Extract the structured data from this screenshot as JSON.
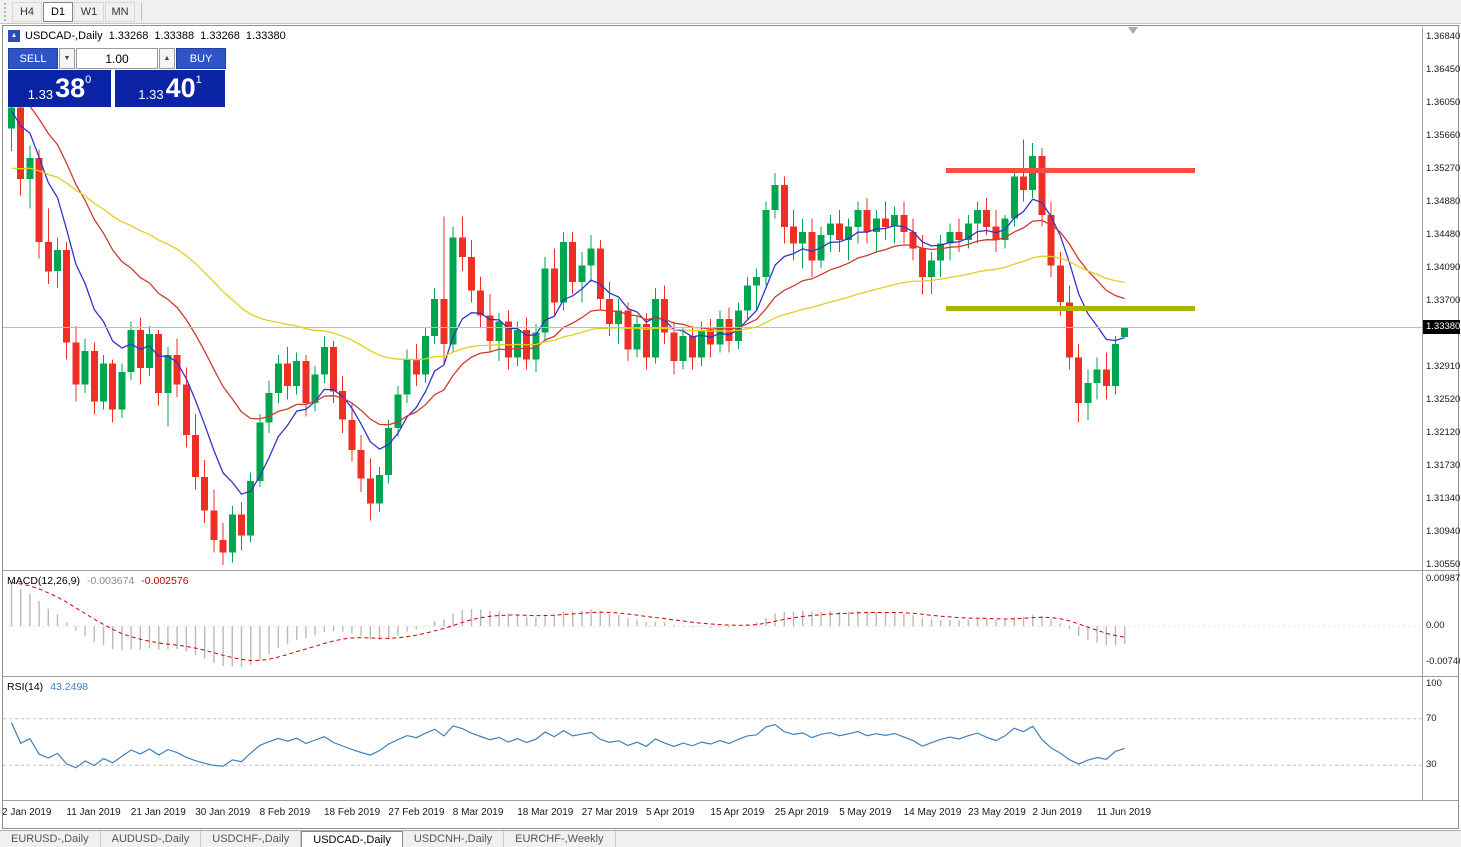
{
  "toolbar": {
    "timeframes": [
      {
        "label": "H4",
        "active": false
      },
      {
        "label": "D1",
        "active": true
      },
      {
        "label": "W1",
        "active": false
      },
      {
        "label": "MN",
        "active": false
      }
    ]
  },
  "icons": {
    "one_click_toggle": "▲",
    "volume_down": "▼",
    "volume_up": "▲"
  },
  "symbol_header": {
    "title": "USDCAD-,Daily",
    "open": "1.33268",
    "high": "1.33388",
    "low": "1.33268",
    "close": "1.33380"
  },
  "trade_panel": {
    "sell_label": "SELL",
    "buy_label": "BUY",
    "volume": "1.00",
    "sell_price": {
      "base": "1.33",
      "big": "38",
      "sup": "0"
    },
    "buy_price": {
      "base": "1.33",
      "big": "40",
      "sup": "1"
    }
  },
  "colors": {
    "button_blue": "#2e55c8",
    "price_panel_blue": "#0b24a6",
    "tag_black": "#000000"
  },
  "price_axis": {
    "labels": [
      "1.36840",
      "1.36450",
      "1.36050",
      "1.35660",
      "1.35270",
      "1.34880",
      "1.34480",
      "1.34090",
      "1.33700",
      "1.32910",
      "1.32520",
      "1.32120",
      "1.31730",
      "1.31340",
      "1.30940",
      "1.30550"
    ],
    "current": {
      "text": "1.33380",
      "value": 1.3338
    }
  },
  "macd_panel": {
    "label": "MACD(12,26,9)",
    "value1": "-0.003674",
    "value2": "-0.002576",
    "axis": [
      {
        "text": "0.009874",
        "value": 0.009874
      },
      {
        "text": "0.00",
        "value": 0
      },
      {
        "text": "-0.007461",
        "value": -0.007461
      }
    ]
  },
  "rsi_panel": {
    "label": "RSI(14)",
    "value": "43.2498",
    "axis": [
      {
        "text": "100",
        "value": 100
      },
      {
        "text": "70",
        "value": 70
      },
      {
        "text": "30",
        "value": 30
      }
    ],
    "levels": [
      70,
      30
    ]
  },
  "bottom_tabs": [
    {
      "label": "EURUSD-,Daily",
      "active": false
    },
    {
      "label": "AUDUSD-,Daily",
      "active": false
    },
    {
      "label": "USDCHF-,Daily",
      "active": false
    },
    {
      "label": "USDCAD-,Daily",
      "active": true
    },
    {
      "label": "USDCNH-,Daily",
      "active": false
    },
    {
      "label": "EURCHF-,Weekly",
      "active": false
    }
  ],
  "chart_data": {
    "type": "candlestick",
    "title": "USDCAD-,Daily",
    "symbol": "USDCAD-",
    "timeframe": "Daily",
    "ylim": [
      1.3049,
      1.3696
    ],
    "up_color": "#00a64f",
    "down_color": "#ef2e24",
    "x_tick_labels": [
      "2 Jan 2019",
      "11 Jan 2019",
      "21 Jan 2019",
      "30 Jan 2019",
      "8 Feb 2019",
      "18 Feb 2019",
      "27 Feb 2019",
      "8 Mar 2019",
      "18 Mar 2019",
      "27 Mar 2019",
      "5 Apr 2019",
      "15 Apr 2019",
      "25 Apr 2019",
      "5 May 2019",
      "14 May 2019",
      "23 May 2019",
      "2 Jun 2019",
      "11 Jun 2019"
    ],
    "x_tick_indices": [
      0,
      7,
      14,
      21,
      28,
      35,
      42,
      49,
      56,
      63,
      70,
      77,
      84,
      91,
      98,
      105,
      112,
      119
    ],
    "candles": [
      [
        1.3575,
        1.3608,
        1.3548,
        1.36
      ],
      [
        1.36,
        1.3618,
        1.3495,
        1.3515
      ],
      [
        1.3515,
        1.3555,
        1.348,
        1.354
      ],
      [
        1.354,
        1.355,
        1.342,
        1.344
      ],
      [
        1.344,
        1.348,
        1.339,
        1.3405
      ],
      [
        1.3405,
        1.3445,
        1.3385,
        1.343
      ],
      [
        1.343,
        1.344,
        1.33,
        1.332
      ],
      [
        1.332,
        1.334,
        1.325,
        1.327
      ],
      [
        1.327,
        1.3325,
        1.326,
        1.331
      ],
      [
        1.331,
        1.332,
        1.3235,
        1.325
      ],
      [
        1.325,
        1.3305,
        1.324,
        1.3295
      ],
      [
        1.3295,
        1.33,
        1.3225,
        1.324
      ],
      [
        1.324,
        1.3295,
        1.323,
        1.3285
      ],
      [
        1.3285,
        1.3345,
        1.3275,
        1.3335
      ],
      [
        1.3335,
        1.335,
        1.327,
        1.329
      ],
      [
        1.329,
        1.334,
        1.328,
        1.333
      ],
      [
        1.333,
        1.3335,
        1.3245,
        1.326
      ],
      [
        1.326,
        1.3315,
        1.322,
        1.3305
      ],
      [
        1.3305,
        1.3325,
        1.3255,
        1.327
      ],
      [
        1.327,
        1.329,
        1.3195,
        1.321
      ],
      [
        1.321,
        1.3235,
        1.3145,
        1.316
      ],
      [
        1.316,
        1.318,
        1.3105,
        1.312
      ],
      [
        1.312,
        1.3145,
        1.307,
        1.3085
      ],
      [
        1.3085,
        1.3105,
        1.3055,
        1.307
      ],
      [
        1.307,
        1.3125,
        1.3058,
        1.3115
      ],
      [
        1.3115,
        1.313,
        1.3072,
        1.309
      ],
      [
        1.309,
        1.3165,
        1.3082,
        1.3155
      ],
      [
        1.3155,
        1.3235,
        1.3148,
        1.3225
      ],
      [
        1.3225,
        1.3275,
        1.3212,
        1.326
      ],
      [
        1.326,
        1.3305,
        1.3248,
        1.3295
      ],
      [
        1.3295,
        1.3315,
        1.3252,
        1.3268
      ],
      [
        1.3268,
        1.3308,
        1.3258,
        1.3298
      ],
      [
        1.3298,
        1.3305,
        1.3232,
        1.3248
      ],
      [
        1.3248,
        1.3292,
        1.3238,
        1.3282
      ],
      [
        1.3282,
        1.3328,
        1.3272,
        1.3315
      ],
      [
        1.3315,
        1.3322,
        1.3248,
        1.3262
      ],
      [
        1.3262,
        1.328,
        1.3212,
        1.3228
      ],
      [
        1.3228,
        1.3248,
        1.3178,
        1.3192
      ],
      [
        1.3192,
        1.321,
        1.3142,
        1.3158
      ],
      [
        1.3158,
        1.3182,
        1.3108,
        1.3128
      ],
      [
        1.3128,
        1.3172,
        1.3118,
        1.3162
      ],
      [
        1.3162,
        1.3228,
        1.3152,
        1.3218
      ],
      [
        1.3218,
        1.3268,
        1.3208,
        1.3258
      ],
      [
        1.3258,
        1.3312,
        1.3248,
        1.33
      ],
      [
        1.33,
        1.3318,
        1.3268,
        1.3282
      ],
      [
        1.3282,
        1.3338,
        1.3272,
        1.3328
      ],
      [
        1.3328,
        1.3385,
        1.3318,
        1.3372
      ],
      [
        1.3372,
        1.347,
        1.3295,
        1.3318
      ],
      [
        1.3318,
        1.3458,
        1.3308,
        1.3445
      ],
      [
        1.3445,
        1.347,
        1.3405,
        1.3422
      ],
      [
        1.3422,
        1.3442,
        1.3368,
        1.3382
      ],
      [
        1.3382,
        1.3398,
        1.3338,
        1.3352
      ],
      [
        1.3352,
        1.3378,
        1.3308,
        1.3322
      ],
      [
        1.3322,
        1.3355,
        1.3298,
        1.3345
      ],
      [
        1.3345,
        1.3358,
        1.3288,
        1.3302
      ],
      [
        1.3302,
        1.3345,
        1.3292,
        1.3335
      ],
      [
        1.3335,
        1.335,
        1.3288,
        1.33
      ],
      [
        1.33,
        1.3342,
        1.3285,
        1.3332
      ],
      [
        1.3332,
        1.3422,
        1.3322,
        1.3408
      ],
      [
        1.3408,
        1.3432,
        1.3352,
        1.3368
      ],
      [
        1.3368,
        1.3452,
        1.3358,
        1.344
      ],
      [
        1.344,
        1.3452,
        1.3378,
        1.3392
      ],
      [
        1.3392,
        1.3428,
        1.3368,
        1.3412
      ],
      [
        1.3412,
        1.3448,
        1.3392,
        1.3432
      ],
      [
        1.3432,
        1.3442,
        1.3358,
        1.3372
      ],
      [
        1.3372,
        1.3392,
        1.3328,
        1.3342
      ],
      [
        1.3342,
        1.3372,
        1.3318,
        1.3358
      ],
      [
        1.3358,
        1.3368,
        1.3298,
        1.3312
      ],
      [
        1.3312,
        1.3352,
        1.3302,
        1.3342
      ],
      [
        1.3342,
        1.3355,
        1.3288,
        1.3302
      ],
      [
        1.3302,
        1.3385,
        1.3295,
        1.3372
      ],
      [
        1.3372,
        1.3388,
        1.3318,
        1.3332
      ],
      [
        1.3332,
        1.3345,
        1.3282,
        1.3298
      ],
      [
        1.3298,
        1.3338,
        1.3288,
        1.3328
      ],
      [
        1.3328,
        1.334,
        1.3288,
        1.3302
      ],
      [
        1.3302,
        1.3345,
        1.3292,
        1.3335
      ],
      [
        1.3335,
        1.3348,
        1.3302,
        1.3318
      ],
      [
        1.3318,
        1.3358,
        1.3308,
        1.3348
      ],
      [
        1.3348,
        1.3362,
        1.3308,
        1.3322
      ],
      [
        1.3322,
        1.3368,
        1.3312,
        1.3358
      ],
      [
        1.3358,
        1.3398,
        1.3348,
        1.3388
      ],
      [
        1.3388,
        1.3408,
        1.3358,
        1.3398
      ],
      [
        1.3398,
        1.3488,
        1.3388,
        1.3478
      ],
      [
        1.3478,
        1.3522,
        1.3468,
        1.3508
      ],
      [
        1.3508,
        1.3518,
        1.3438,
        1.3458
      ],
      [
        1.3458,
        1.3478,
        1.3418,
        1.3438
      ],
      [
        1.3438,
        1.3468,
        1.3408,
        1.3452
      ],
      [
        1.3452,
        1.3468,
        1.3398,
        1.3418
      ],
      [
        1.3418,
        1.3458,
        1.3408,
        1.3448
      ],
      [
        1.3448,
        1.3472,
        1.3428,
        1.3462
      ],
      [
        1.3462,
        1.3478,
        1.3428,
        1.3442
      ],
      [
        1.3442,
        1.3468,
        1.3418,
        1.3458
      ],
      [
        1.3458,
        1.3488,
        1.3438,
        1.3478
      ],
      [
        1.3478,
        1.3492,
        1.3438,
        1.3452
      ],
      [
        1.3452,
        1.3478,
        1.3428,
        1.3468
      ],
      [
        1.3468,
        1.3488,
        1.3442,
        1.3458
      ],
      [
        1.3458,
        1.3482,
        1.3438,
        1.3472
      ],
      [
        1.3472,
        1.3488,
        1.3438,
        1.3452
      ],
      [
        1.3452,
        1.3468,
        1.3418,
        1.3432
      ],
      [
        1.3432,
        1.3448,
        1.3377,
        1.3398
      ],
      [
        1.3398,
        1.3428,
        1.3378,
        1.3418
      ],
      [
        1.3418,
        1.3448,
        1.3398,
        1.3438
      ],
      [
        1.3438,
        1.3462,
        1.3418,
        1.3452
      ],
      [
        1.3452,
        1.3468,
        1.3428,
        1.3442
      ],
      [
        1.3442,
        1.3472,
        1.3432,
        1.3462
      ],
      [
        1.3462,
        1.3488,
        1.3438,
        1.3478
      ],
      [
        1.3478,
        1.3492,
        1.3448,
        1.3458
      ],
      [
        1.3458,
        1.3478,
        1.3428,
        1.3442
      ],
      [
        1.3442,
        1.3472,
        1.3432,
        1.3468
      ],
      [
        1.3468,
        1.3528,
        1.3458,
        1.3518
      ],
      [
        1.3518,
        1.3562,
        1.3488,
        1.3502
      ],
      [
        1.3502,
        1.3558,
        1.3492,
        1.3542
      ],
      [
        1.3542,
        1.3552,
        1.3458,
        1.3472
      ],
      [
        1.3472,
        1.3488,
        1.3398,
        1.3412
      ],
      [
        1.3412,
        1.3428,
        1.3352,
        1.3368
      ],
      [
        1.3368,
        1.3388,
        1.3288,
        1.3302
      ],
      [
        1.3302,
        1.3318,
        1.3225,
        1.3248
      ],
      [
        1.3248,
        1.3288,
        1.3228,
        1.3272
      ],
      [
        1.3272,
        1.3302,
        1.3252,
        1.3288
      ],
      [
        1.3288,
        1.3308,
        1.3252,
        1.3268
      ],
      [
        1.3268,
        1.3328,
        1.3258,
        1.3318
      ],
      [
        1.33268,
        1.33388,
        1.33268,
        1.3338
      ]
    ],
    "moving_averages": [
      {
        "name": "ma-fast-blue",
        "color": "#3333cc",
        "period": 8,
        "seed": 1.3595
      },
      {
        "name": "ma-mid-red",
        "color": "#cf3a30",
        "period": 20,
        "seed": 1.362
      },
      {
        "name": "ma-slow-yellow",
        "color": "#e3cf1c",
        "period": 55,
        "seed": 1.3525
      }
    ],
    "hlines": [
      {
        "name": "resistance-line",
        "price": 1.3525,
        "color": "#f94c43",
        "thickness": 5,
        "from_index": 102,
        "to_index": 129
      },
      {
        "name": "support-line",
        "price": 1.336,
        "color": "#a9b400",
        "thickness": 5,
        "from_index": 102,
        "to_index": 129
      }
    ],
    "current_price": 1.3338,
    "macd": {
      "fast": 12,
      "slow": 26,
      "signal": 9,
      "ylim": [
        -0.0105,
        0.0112
      ],
      "seed_fast_offset": -0.0004,
      "seed_slow_offset": -0.0102,
      "seed_signal": 0.0092,
      "histogram_color": "#b9b9b9",
      "signal_color": "#d40000"
    },
    "rsi": {
      "period": 14,
      "line_color": "#3f81bd",
      "seed_avg_gain": 0.0012,
      "seed_avg_loss": 0.0006
    }
  }
}
